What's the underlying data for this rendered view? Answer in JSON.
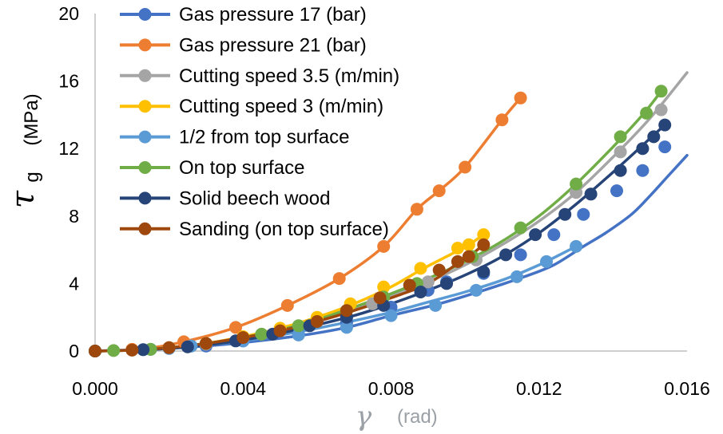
{
  "chart_data": {
    "type": "line",
    "ylabel_symbol": "τ",
    "ylabel_sub": "g",
    "ylabel_unit": "(MPa)",
    "xlabel_symbol": "γ",
    "xlabel_unit": "(rad)",
    "xlim": [
      0,
      0.016
    ],
    "ylim": [
      0,
      20
    ],
    "x_ticks": [
      "0.000",
      "0.004",
      "0.008",
      "0.012",
      "0.016"
    ],
    "y_ticks": [
      "0",
      "4",
      "8",
      "12",
      "16",
      "20"
    ],
    "x_tick_values": [
      0,
      0.004,
      0.008,
      0.012,
      0.016
    ],
    "y_tick_values": [
      0,
      4,
      8,
      12,
      16,
      20
    ],
    "legend_position": "top-left",
    "grid": false,
    "series": [
      {
        "name": "Gas pressure 17 (bar)",
        "color": "#4472C4",
        "points": [
          [
            0,
            0
          ],
          [
            0.0008,
            0.05
          ],
          [
            0.0015,
            0.1
          ],
          [
            0.0022,
            0.2
          ],
          [
            0.003,
            0.3
          ],
          [
            0.004,
            0.5
          ],
          [
            0.0055,
            0.9
          ],
          [
            0.0068,
            1.4
          ],
          [
            0.008,
            2.1
          ],
          [
            0.0093,
            2.8
          ],
          [
            0.0105,
            3.6
          ],
          [
            0.0116,
            4.4
          ],
          [
            0.0124,
            5.1
          ],
          [
            0.0132,
            6.2
          ],
          [
            0.0138,
            7.0
          ],
          [
            0.0145,
            8.1
          ],
          [
            0.015,
            9.2
          ],
          [
            0.0155,
            10.4
          ],
          [
            0.016,
            11.6
          ]
        ],
        "markers": [
          [
            0,
            0
          ],
          [
            0.0015,
            0.1
          ],
          [
            0.003,
            0.3
          ],
          [
            0.004,
            0.6
          ],
          [
            0.0055,
            1.0
          ],
          [
            0.0068,
            1.7
          ],
          [
            0.008,
            2.6
          ],
          [
            0.009,
            3.6
          ],
          [
            0.0095,
            4.1
          ],
          [
            0.0105,
            4.6
          ],
          [
            0.0115,
            5.7
          ],
          [
            0.0124,
            6.9
          ],
          [
            0.0132,
            8.1
          ],
          [
            0.0141,
            9.5
          ],
          [
            0.0148,
            10.7
          ],
          [
            0.0154,
            12.1
          ]
        ]
      },
      {
        "name": "Gas pressure 21 (bar)",
        "color": "#ED7D31",
        "points": [
          [
            0,
            0
          ],
          [
            0.0012,
            0.1
          ],
          [
            0.0024,
            0.55
          ],
          [
            0.0038,
            1.4
          ],
          [
            0.0052,
            2.7
          ],
          [
            0.0066,
            4.3
          ],
          [
            0.0078,
            6.2
          ],
          [
            0.0087,
            8.4
          ],
          [
            0.0093,
            9.5
          ],
          [
            0.01,
            10.9
          ],
          [
            0.011,
            13.7
          ],
          [
            0.0115,
            15.0
          ]
        ],
        "markers": [
          [
            0,
            0
          ],
          [
            0.001,
            0.1
          ],
          [
            0.0024,
            0.55
          ],
          [
            0.0038,
            1.4
          ],
          [
            0.0052,
            2.7
          ],
          [
            0.0066,
            4.3
          ],
          [
            0.0078,
            6.2
          ],
          [
            0.0087,
            8.4
          ],
          [
            0.0093,
            9.5
          ],
          [
            0.01,
            10.9
          ],
          [
            0.011,
            13.7
          ],
          [
            0.0115,
            15.0
          ]
        ]
      },
      {
        "name": "Cutting speed 3.5 (m/min)",
        "color": "#A5A5A5",
        "points": [
          [
            0,
            0
          ],
          [
            0.001,
            0.05
          ],
          [
            0.002,
            0.2
          ],
          [
            0.003,
            0.4
          ],
          [
            0.004,
            0.75
          ],
          [
            0.005,
            1.2
          ],
          [
            0.006,
            1.8
          ],
          [
            0.007,
            2.5
          ],
          [
            0.008,
            3.3
          ],
          [
            0.009,
            4.1
          ],
          [
            0.01,
            5.1
          ],
          [
            0.011,
            6.3
          ],
          [
            0.012,
            7.7
          ],
          [
            0.013,
            9.4
          ],
          [
            0.014,
            11.5
          ],
          [
            0.015,
            13.8
          ],
          [
            0.016,
            16.5
          ]
        ],
        "markers": [
          [
            0,
            0
          ],
          [
            0.002,
            0.2
          ],
          [
            0.003,
            0.4
          ],
          [
            0.0045,
            1.0
          ],
          [
            0.006,
            1.8
          ],
          [
            0.0075,
            2.8
          ],
          [
            0.009,
            4.1
          ],
          [
            0.0103,
            5.4
          ],
          [
            0.013,
            9.4
          ],
          [
            0.0142,
            11.8
          ],
          [
            0.0153,
            14.3
          ]
        ]
      },
      {
        "name": "Cutting speed 3 (m/min)",
        "color": "#FFC000",
        "points": [
          [
            0,
            0
          ],
          [
            0.001,
            0.05
          ],
          [
            0.002,
            0.2
          ],
          [
            0.003,
            0.45
          ],
          [
            0.004,
            0.85
          ],
          [
            0.005,
            1.35
          ],
          [
            0.006,
            2.0
          ],
          [
            0.007,
            2.8
          ],
          [
            0.008,
            3.8
          ],
          [
            0.0088,
            4.8
          ],
          [
            0.0095,
            5.6
          ],
          [
            0.0101,
            6.3
          ],
          [
            0.0105,
            6.9
          ]
        ],
        "markers": [
          [
            0,
            0
          ],
          [
            0.002,
            0.2
          ],
          [
            0.003,
            0.45
          ],
          [
            0.004,
            0.85
          ],
          [
            0.005,
            1.35
          ],
          [
            0.006,
            2.0
          ],
          [
            0.0069,
            2.8
          ],
          [
            0.0078,
            3.8
          ],
          [
            0.0088,
            4.9
          ],
          [
            0.0098,
            6.1
          ],
          [
            0.0101,
            6.3
          ],
          [
            0.0105,
            6.9
          ]
        ]
      },
      {
        "name": "1/2 from top surface",
        "color": "#5B9BD5",
        "points": [
          [
            0,
            0
          ],
          [
            0.001,
            0.05
          ],
          [
            0.002,
            0.15
          ],
          [
            0.003,
            0.35
          ],
          [
            0.004,
            0.6
          ],
          [
            0.005,
            0.95
          ],
          [
            0.006,
            1.35
          ],
          [
            0.007,
            1.8
          ],
          [
            0.008,
            2.3
          ],
          [
            0.009,
            2.9
          ],
          [
            0.01,
            3.5
          ],
          [
            0.011,
            4.2
          ],
          [
            0.012,
            5.1
          ],
          [
            0.013,
            6.2
          ]
        ],
        "markers": [
          [
            0,
            0
          ],
          [
            0.002,
            0.15
          ],
          [
            0.0026,
            0.3
          ],
          [
            0.004,
            0.6
          ],
          [
            0.0055,
            0.95
          ],
          [
            0.0068,
            1.4
          ],
          [
            0.008,
            2.1
          ],
          [
            0.0092,
            2.7
          ],
          [
            0.0103,
            3.6
          ],
          [
            0.0114,
            4.4
          ],
          [
            0.0122,
            5.3
          ],
          [
            0.013,
            6.2
          ]
        ]
      },
      {
        "name": "On top surface",
        "color": "#70AD47",
        "points": [
          [
            0,
            0
          ],
          [
            0.001,
            0.05
          ],
          [
            0.002,
            0.2
          ],
          [
            0.003,
            0.45
          ],
          [
            0.004,
            0.8
          ],
          [
            0.005,
            1.25
          ],
          [
            0.006,
            1.85
          ],
          [
            0.007,
            2.6
          ],
          [
            0.008,
            3.4
          ],
          [
            0.009,
            4.3
          ],
          [
            0.01,
            5.3
          ],
          [
            0.011,
            6.5
          ],
          [
            0.012,
            8.0
          ],
          [
            0.013,
            9.9
          ],
          [
            0.014,
            12.1
          ],
          [
            0.0148,
            14.0
          ],
          [
            0.0153,
            15.4
          ]
        ],
        "markers": [
          [
            0,
            0
          ],
          [
            0.0005,
            0.03
          ],
          [
            0.0015,
            0.1
          ],
          [
            0.003,
            0.45
          ],
          [
            0.0045,
            1.0
          ],
          [
            0.0055,
            1.5
          ],
          [
            0.0068,
            2.4
          ],
          [
            0.0078,
            3.2
          ],
          [
            0.0087,
            4.0
          ],
          [
            0.0102,
            5.6
          ],
          [
            0.0115,
            7.3
          ],
          [
            0.013,
            9.9
          ],
          [
            0.0142,
            12.7
          ],
          [
            0.0149,
            14.1
          ],
          [
            0.0153,
            15.4
          ]
        ]
      },
      {
        "name": "Solid beech wood",
        "color": "#264478",
        "points": [
          [
            0,
            0
          ],
          [
            0.001,
            0.05
          ],
          [
            0.002,
            0.15
          ],
          [
            0.003,
            0.35
          ],
          [
            0.004,
            0.65
          ],
          [
            0.005,
            1.05
          ],
          [
            0.006,
            1.55
          ],
          [
            0.007,
            2.1
          ],
          [
            0.008,
            2.8
          ],
          [
            0.009,
            3.6
          ],
          [
            0.01,
            4.5
          ],
          [
            0.011,
            5.6
          ],
          [
            0.012,
            7.0
          ],
          [
            0.013,
            8.7
          ],
          [
            0.014,
            10.6
          ],
          [
            0.015,
            12.6
          ],
          [
            0.0154,
            13.4
          ]
        ],
        "markers": [
          [
            0,
            0
          ],
          [
            0.0013,
            0.08
          ],
          [
            0.0025,
            0.25
          ],
          [
            0.0038,
            0.6
          ],
          [
            0.0048,
            1.0
          ],
          [
            0.0058,
            1.5
          ],
          [
            0.0068,
            2.0
          ],
          [
            0.0078,
            2.7
          ],
          [
            0.0088,
            3.5
          ],
          [
            0.0095,
            4.0
          ],
          [
            0.0105,
            4.7
          ],
          [
            0.0111,
            5.7
          ],
          [
            0.0119,
            6.9
          ],
          [
            0.0127,
            8.1
          ],
          [
            0.0134,
            9.3
          ],
          [
            0.0142,
            10.7
          ],
          [
            0.0148,
            12.0
          ],
          [
            0.0151,
            12.7
          ],
          [
            0.0154,
            13.4
          ]
        ]
      },
      {
        "name": "Sanding (on top surface)",
        "color": "#9E480E",
        "points": [
          [
            0,
            0
          ],
          [
            0.001,
            0.05
          ],
          [
            0.002,
            0.2
          ],
          [
            0.003,
            0.45
          ],
          [
            0.004,
            0.8
          ],
          [
            0.005,
            1.2
          ],
          [
            0.006,
            1.75
          ],
          [
            0.007,
            2.4
          ],
          [
            0.008,
            3.15
          ],
          [
            0.009,
            4.0
          ],
          [
            0.0098,
            5.2
          ],
          [
            0.0101,
            5.6
          ],
          [
            0.0105,
            6.3
          ]
        ],
        "markers": [
          [
            0,
            0
          ],
          [
            0.001,
            0.05
          ],
          [
            0.002,
            0.2
          ],
          [
            0.003,
            0.45
          ],
          [
            0.004,
            0.8
          ],
          [
            0.005,
            1.2
          ],
          [
            0.006,
            1.75
          ],
          [
            0.0068,
            2.4
          ],
          [
            0.0077,
            3.15
          ],
          [
            0.0085,
            3.9
          ],
          [
            0.0093,
            4.8
          ],
          [
            0.0098,
            5.3
          ],
          [
            0.0101,
            5.6
          ],
          [
            0.0105,
            6.3
          ]
        ]
      }
    ]
  }
}
